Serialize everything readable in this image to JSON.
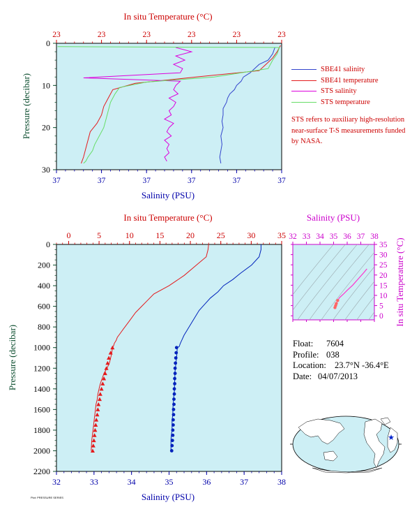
{
  "chart_data": [
    {
      "type": "line",
      "panel": "top",
      "title": "",
      "x_top_label": "In situ Temperature (°C)",
      "x_bottom_label": "Salinity (PSU)",
      "ylabel": "Pressure (decibar)",
      "top_tick_labels": [
        "23",
        "23",
        "23",
        "23",
        "23",
        "23"
      ],
      "bottom_tick_labels": [
        "37",
        "37",
        "37",
        "37",
        "37",
        "37"
      ],
      "y_ticks": [
        0,
        10,
        20,
        30
      ],
      "ylim": [
        0,
        30
      ],
      "x_normalized_range": [
        0,
        1
      ],
      "grid": false,
      "series": [
        {
          "name": "SBE41 salinity",
          "color": "#3344cc",
          "x": [
            0.97,
            0.96,
            0.94,
            0.9,
            0.88,
            0.86,
            0.83,
            0.82,
            0.8,
            0.79,
            0.77,
            0.76,
            0.755,
            0.74,
            0.74,
            0.735,
            0.74,
            0.73,
            0.735,
            0.73,
            0.725,
            0.73
          ],
          "y": [
            1,
            2.5,
            4,
            5,
            6,
            7,
            8,
            9,
            10,
            11,
            12,
            13,
            14,
            15.5,
            17,
            18.5,
            20,
            22,
            24,
            25.5,
            27,
            28.5
          ]
        },
        {
          "name": "SBE41 temperature",
          "color": "#e41a1c",
          "x": [
            0.995,
            0.98,
            0.96,
            0.93,
            0.9,
            0.62,
            0.35,
            0.25,
            0.23,
            0.21,
            0.2,
            0.18,
            0.15,
            0.14,
            0.13,
            0.12,
            0.11
          ],
          "y": [
            0.5,
            2,
            3.5,
            5,
            6.5,
            8,
            9.5,
            11,
            13,
            15,
            17,
            19,
            21,
            23,
            25,
            27,
            28.5
          ]
        },
        {
          "name": "STS salinity",
          "color": "#dd00dd",
          "x": [
            0.53,
            0.6,
            0.53,
            0.57,
            0.52,
            0.56,
            0.55,
            0.12,
            0.55,
            0.53,
            0.52,
            0.54,
            0.5,
            0.53,
            0.52,
            0.5,
            0.51,
            0.48,
            0.52,
            0.5,
            0.49,
            0.51,
            0.48,
            0.5,
            0.49,
            0.5,
            0.48,
            0.49
          ],
          "y": [
            1,
            2,
            3,
            4,
            5,
            6,
            7,
            8.2,
            9,
            10,
            11,
            12,
            13,
            14,
            15,
            16,
            17,
            18,
            19,
            20,
            21,
            22,
            23,
            24,
            25,
            26,
            27,
            28
          ]
        },
        {
          "name": "STS temperature",
          "color": "#66dd66",
          "x": [
            0.005,
            0.99,
            0.98,
            0.96,
            0.94,
            0.7,
            0.4,
            0.28,
            0.26,
            0.24,
            0.23,
            0.22,
            0.21,
            0.19,
            0.17,
            0.16,
            0.14,
            0.13,
            0.12
          ],
          "y": [
            0.8,
            1,
            2.5,
            4,
            6,
            8,
            9.2,
            10.5,
            12,
            14,
            16,
            18,
            20,
            22,
            24,
            25.5,
            27,
            28,
            28.5
          ]
        }
      ]
    },
    {
      "type": "line",
      "panel": "main",
      "x_top_label": "In situ Temperature (°C)",
      "x_bottom_label": "Salinity (PSU)",
      "ylabel": "Pressure (decibar)",
      "temp_ticks": [
        0,
        5,
        10,
        15,
        20,
        25,
        30,
        35
      ],
      "temp_lim": [
        -2,
        35
      ],
      "sal_ticks": [
        32,
        33,
        34,
        35,
        36,
        37,
        38
      ],
      "sal_lim": [
        32,
        38
      ],
      "y_ticks": [
        0,
        200,
        400,
        600,
        800,
        1000,
        1200,
        1400,
        1600,
        1800,
        2000,
        2200
      ],
      "ylim": [
        0,
        2200
      ],
      "grid": false,
      "series": [
        {
          "name": "Temperature",
          "color": "#e41a1c",
          "temperature": [
            23,
            22.9,
            22.6,
            21,
            19,
            16.5,
            14,
            13,
            12,
            11,
            10.5,
            10,
            9.5,
            9,
            8.5,
            8,
            7.8,
            7.5,
            7.4,
            7.2,
            7.1,
            6.9,
            6.7,
            6.3,
            5.8,
            5.5,
            5.2,
            5.0,
            4.8,
            4.7,
            4.5,
            4.4,
            4.3,
            4.2,
            4.1,
            4.0,
            3.9,
            3.8,
            3.7
          ],
          "pressure": [
            0,
            50,
            120,
            200,
            300,
            400,
            480,
            540,
            600,
            660,
            700,
            740,
            780,
            820,
            860,
            900,
            930,
            960,
            980,
            1000,
            1050,
            1100,
            1150,
            1200,
            1250,
            1300,
            1350,
            1400,
            1450,
            1500,
            1550,
            1600,
            1650,
            1700,
            1750,
            1800,
            1850,
            1900,
            2000
          ]
        },
        {
          "name": "Salinity",
          "color": "#0022bb",
          "salinity": [
            37.45,
            37.45,
            37.4,
            37.2,
            36.9,
            36.7,
            36.45,
            36.3,
            36.1,
            35.95,
            35.8,
            35.7,
            35.6,
            35.5,
            35.4,
            35.35,
            35.3,
            35.27,
            35.22,
            35.2,
            35.18,
            35.17,
            35.15,
            35.16,
            35.14,
            35.15,
            35.13,
            35.12,
            35.11,
            35.1,
            35.1,
            35.08,
            35.08,
            35.06,
            35.05,
            35.05
          ],
          "pressure": [
            0,
            50,
            120,
            200,
            280,
            340,
            400,
            460,
            520,
            580,
            640,
            700,
            760,
            820,
            880,
            920,
            960,
            990,
            1000,
            1100,
            1150,
            1200,
            1250,
            1300,
            1350,
            1400,
            1450,
            1500,
            1550,
            1600,
            1650,
            1700,
            1800,
            1850,
            1900,
            2000
          ]
        }
      ],
      "markers": {
        "pressure": [
          1000,
          1050,
          1100,
          1150,
          1200,
          1250,
          1300,
          1350,
          1400,
          1450,
          1500,
          1550,
          1600,
          1650,
          1700,
          1750,
          1800,
          1850,
          1900,
          1950,
          2000
        ],
        "temperature": [
          7.2,
          6.9,
          6.6,
          6.4,
          6.2,
          6.0,
          5.8,
          5.6,
          5.4,
          5.2,
          5.1,
          4.9,
          4.8,
          4.7,
          4.55,
          4.45,
          4.35,
          4.25,
          4.15,
          4.05,
          3.95
        ],
        "salinity": [
          35.2,
          35.19,
          35.18,
          35.17,
          35.16,
          35.16,
          35.15,
          35.15,
          35.14,
          35.14,
          35.13,
          35.13,
          35.12,
          35.12,
          35.11,
          35.11,
          35.1,
          35.1,
          35.09,
          35.08,
          35.07
        ]
      }
    },
    {
      "type": "scatter",
      "panel": "ts-diagram",
      "x_top_label": "Salinity (PSU)",
      "ylabel": "In situ Temperature (°C)",
      "sal_ticks": [
        32,
        33,
        34,
        35,
        36,
        37,
        38
      ],
      "sal_lim": [
        32,
        38
      ],
      "temp_ticks": [
        0,
        5,
        10,
        15,
        20,
        25,
        30,
        35
      ],
      "temp_lim": [
        -2,
        35
      ],
      "series": [
        {
          "name": "T-S",
          "color": "#ff33cc",
          "salinity": [
            37.45,
            37.2,
            36.8,
            36.4,
            36.0,
            35.7,
            35.45,
            35.3,
            35.2,
            35.15,
            35.1
          ],
          "temperature": [
            23,
            21,
            18,
            15,
            12.5,
            10.5,
            9,
            7.5,
            6,
            5,
            4
          ]
        }
      ]
    }
  ],
  "legend": [
    {
      "label": "SBE41 salinity",
      "color": "#3344cc"
    },
    {
      "label": "SBE41 temperature",
      "color": "#e41a1c"
    },
    {
      "label": "STS salinity",
      "color": "#dd00dd"
    },
    {
      "label": "STS temperature",
      "color": "#66dd66"
    }
  ],
  "note": "STS refers to auxiliary high-resolution near-surface T-S measurements funded by NASA.",
  "float_info": {
    "float_label": "Float:",
    "float_value": "7604",
    "profile_label": "Profile:",
    "profile_value": "038",
    "location_label": "Location:",
    "location_value": "23.7°N  -36.4°E",
    "date_label": "Date:",
    "date_value": "04/07/2013"
  },
  "footer": "Plot: PRESSURE SERIES",
  "colors": {
    "plot_bg": "#cdeff5",
    "temp_axis": "#cc0000",
    "sal_axis": "#0000aa",
    "pressure_axis": "#0b4d2e",
    "ts_axis": "#cc00cc"
  }
}
